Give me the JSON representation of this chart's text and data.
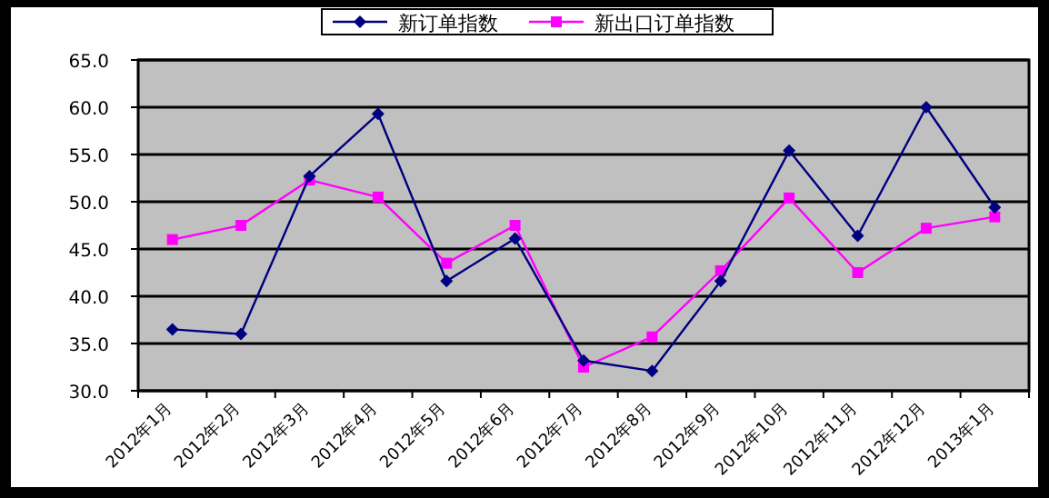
{
  "chart_data": {
    "type": "line",
    "categories": [
      "2012年1月",
      "2012年2月",
      "2012年3月",
      "2012年4月",
      "2012年5月",
      "2012年6月",
      "2012年7月",
      "2012年8月",
      "2012年9月",
      "2012年10月",
      "2012年11月",
      "2012年12月",
      "2013年1月"
    ],
    "series": [
      {
        "name": "新订单指数",
        "color": "#000080",
        "marker": "diamond",
        "values": [
          36.5,
          36.0,
          52.7,
          59.3,
          41.6,
          46.1,
          33.2,
          32.1,
          41.6,
          55.4,
          46.4,
          60.0,
          49.4
        ]
      },
      {
        "name": "新出口订单指数",
        "color": "#ff00ff",
        "marker": "square",
        "values": [
          46.0,
          47.5,
          52.3,
          50.5,
          43.5,
          47.5,
          32.5,
          35.7,
          42.7,
          50.4,
          42.5,
          47.2,
          48.4
        ]
      }
    ],
    "ylim": [
      30,
      65
    ],
    "yticks": [
      {
        "value": 30,
        "label": "30.0"
      },
      {
        "value": 35,
        "label": "35.0"
      },
      {
        "value": 40,
        "label": "40.0"
      },
      {
        "value": 45,
        "label": "45.0"
      },
      {
        "value": 50,
        "label": "50.0"
      },
      {
        "value": 55,
        "label": "55.0"
      },
      {
        "value": 60,
        "label": "60.0"
      },
      {
        "value": 65,
        "label": "65.0"
      }
    ],
    "grid": "y",
    "legend": "top"
  }
}
